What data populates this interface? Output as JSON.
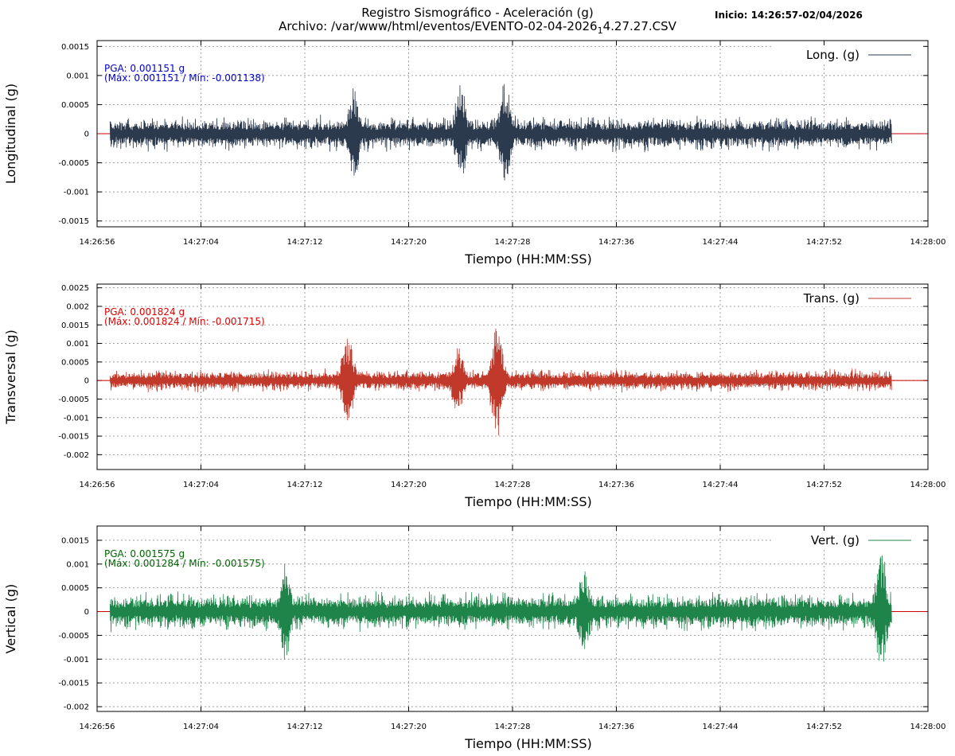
{
  "header": {
    "title_line1": "Registro Sismográfico - Aceleración (g)",
    "title_line2_prefix": "Archivo: /var/www/html/eventos/EVENTO-02-04-2026",
    "title_line2_subscript": "1",
    "title_line2_suffix": "4.27.27.CSV",
    "inicio": "Inicio: 14:26:57-02/04/2026"
  },
  "chart_data": [
    {
      "type": "line",
      "ylabel": "Longitudinal (g)",
      "xlabel": "Tiempo (HH:MM:SS)",
      "legend": "Long. (g)",
      "legend_position": "top-right",
      "grid": true,
      "color": "#2c3a4e",
      "zero_line_color": "#cc0000",
      "annotation_line1": "PGA: 0.001151 g",
      "annotation_line2": "(Máx: 0.001151 / Mín: -0.001138)",
      "annotation_color": "#0000cc",
      "ylim": [
        -0.0016,
        0.0016
      ],
      "yticks": [
        -0.0015,
        -0.001,
        -0.0005,
        0,
        0.0005,
        0.001,
        0.0015
      ],
      "ytick_labels": [
        "-0.0015",
        "-0.001",
        "-0.0005",
        "0",
        "0.0005",
        "0.001",
        "0.0015"
      ],
      "x_range": [
        "14:26:56",
        "14:28:00"
      ],
      "xticks": [
        "14:26:56",
        "14:27:04",
        "14:27:12",
        "14:27:20",
        "14:27:28",
        "14:27:36",
        "14:27:44",
        "14:27:52",
        "14:28:00"
      ],
      "data_range": [
        "14:26:57",
        "14:27:57.2"
      ],
      "typical_amplitude": 0.0003,
      "bursts": [
        {
          "time": "14:27:27.4",
          "amplitude": 0.00115
        },
        {
          "time": "14:27:15.8",
          "amplitude": 0.0009
        },
        {
          "time": "14:27:24.0",
          "amplitude": 0.001
        }
      ],
      "max": 0.001151,
      "min": -0.001138
    },
    {
      "type": "line",
      "ylabel": "Transversal (g)",
      "xlabel": "Tiempo (HH:MM:SS)",
      "legend": "Trans. (g)",
      "legend_position": "top-right",
      "grid": true,
      "color": "#c0392b",
      "zero_line_color": "#cc0000",
      "annotation_line1": "PGA: 0.001824 g",
      "annotation_line2": "(Máx: 0.001824 / Mín: -0.001715)",
      "annotation_color": "#e00000",
      "ylim": [
        -0.0024,
        0.0026
      ],
      "yticks": [
        -0.002,
        -0.0015,
        -0.001,
        -0.0005,
        0,
        0.0005,
        0.001,
        0.0015,
        0.002,
        0.0025
      ],
      "ytick_labels": [
        "-0.002",
        "-0.0015",
        "-0.001",
        "-0.0005",
        "0",
        "0.0005",
        "0.001",
        "0.0015",
        "0.002",
        "0.0025"
      ],
      "x_range": [
        "14:26:56",
        "14:28:00"
      ],
      "xticks": [
        "14:26:56",
        "14:27:04",
        "14:27:12",
        "14:27:20",
        "14:27:28",
        "14:27:36",
        "14:27:44",
        "14:27:52",
        "14:28:00"
      ],
      "data_range": [
        "14:26:57",
        "14:27:57.2"
      ],
      "typical_amplitude": 0.0003,
      "bursts": [
        {
          "time": "14:27:26.8",
          "amplitude": 0.0018
        },
        {
          "time": "14:27:15.3",
          "amplitude": 0.0015
        },
        {
          "time": "14:27:23.8",
          "amplitude": 0.0011
        }
      ],
      "max": 0.001824,
      "min": -0.001715
    },
    {
      "type": "line",
      "ylabel": "Vertical (g)",
      "xlabel": "Tiempo (HH:MM:SS)",
      "legend": "Vert. (g)",
      "legend_position": "top-right",
      "grid": true,
      "color": "#1e8449",
      "zero_line_color": "#cc0000",
      "annotation_line1": "PGA: 0.001575 g",
      "annotation_line2": "(Máx: 0.001284 / Mín: -0.001575)",
      "annotation_color": "#006400",
      "ylim": [
        -0.0021,
        0.0018
      ],
      "yticks": [
        -0.002,
        -0.0015,
        -0.001,
        -0.0005,
        0,
        0.0005,
        0.001,
        0.0015
      ],
      "ytick_labels": [
        "-0.002",
        "-0.0015",
        "-0.001",
        "-0.0005",
        "0",
        "0.0005",
        "0.001",
        "0.0015"
      ],
      "x_range": [
        "14:26:56",
        "14:28:00"
      ],
      "xticks": [
        "14:26:56",
        "14:27:04",
        "14:27:12",
        "14:27:20",
        "14:27:28",
        "14:27:36",
        "14:27:44",
        "14:27:52",
        "14:28:00"
      ],
      "data_range": [
        "14:26:57",
        "14:27:57.2"
      ],
      "typical_amplitude": 0.0004,
      "bursts": [
        {
          "time": "14:27:56.4",
          "amplitude": 0.0015
        },
        {
          "time": "14:27:10.5",
          "amplitude": 0.0012
        },
        {
          "time": "14:27:33.5",
          "amplitude": 0.0011
        }
      ],
      "max": 0.001284,
      "min": -0.001575
    }
  ]
}
